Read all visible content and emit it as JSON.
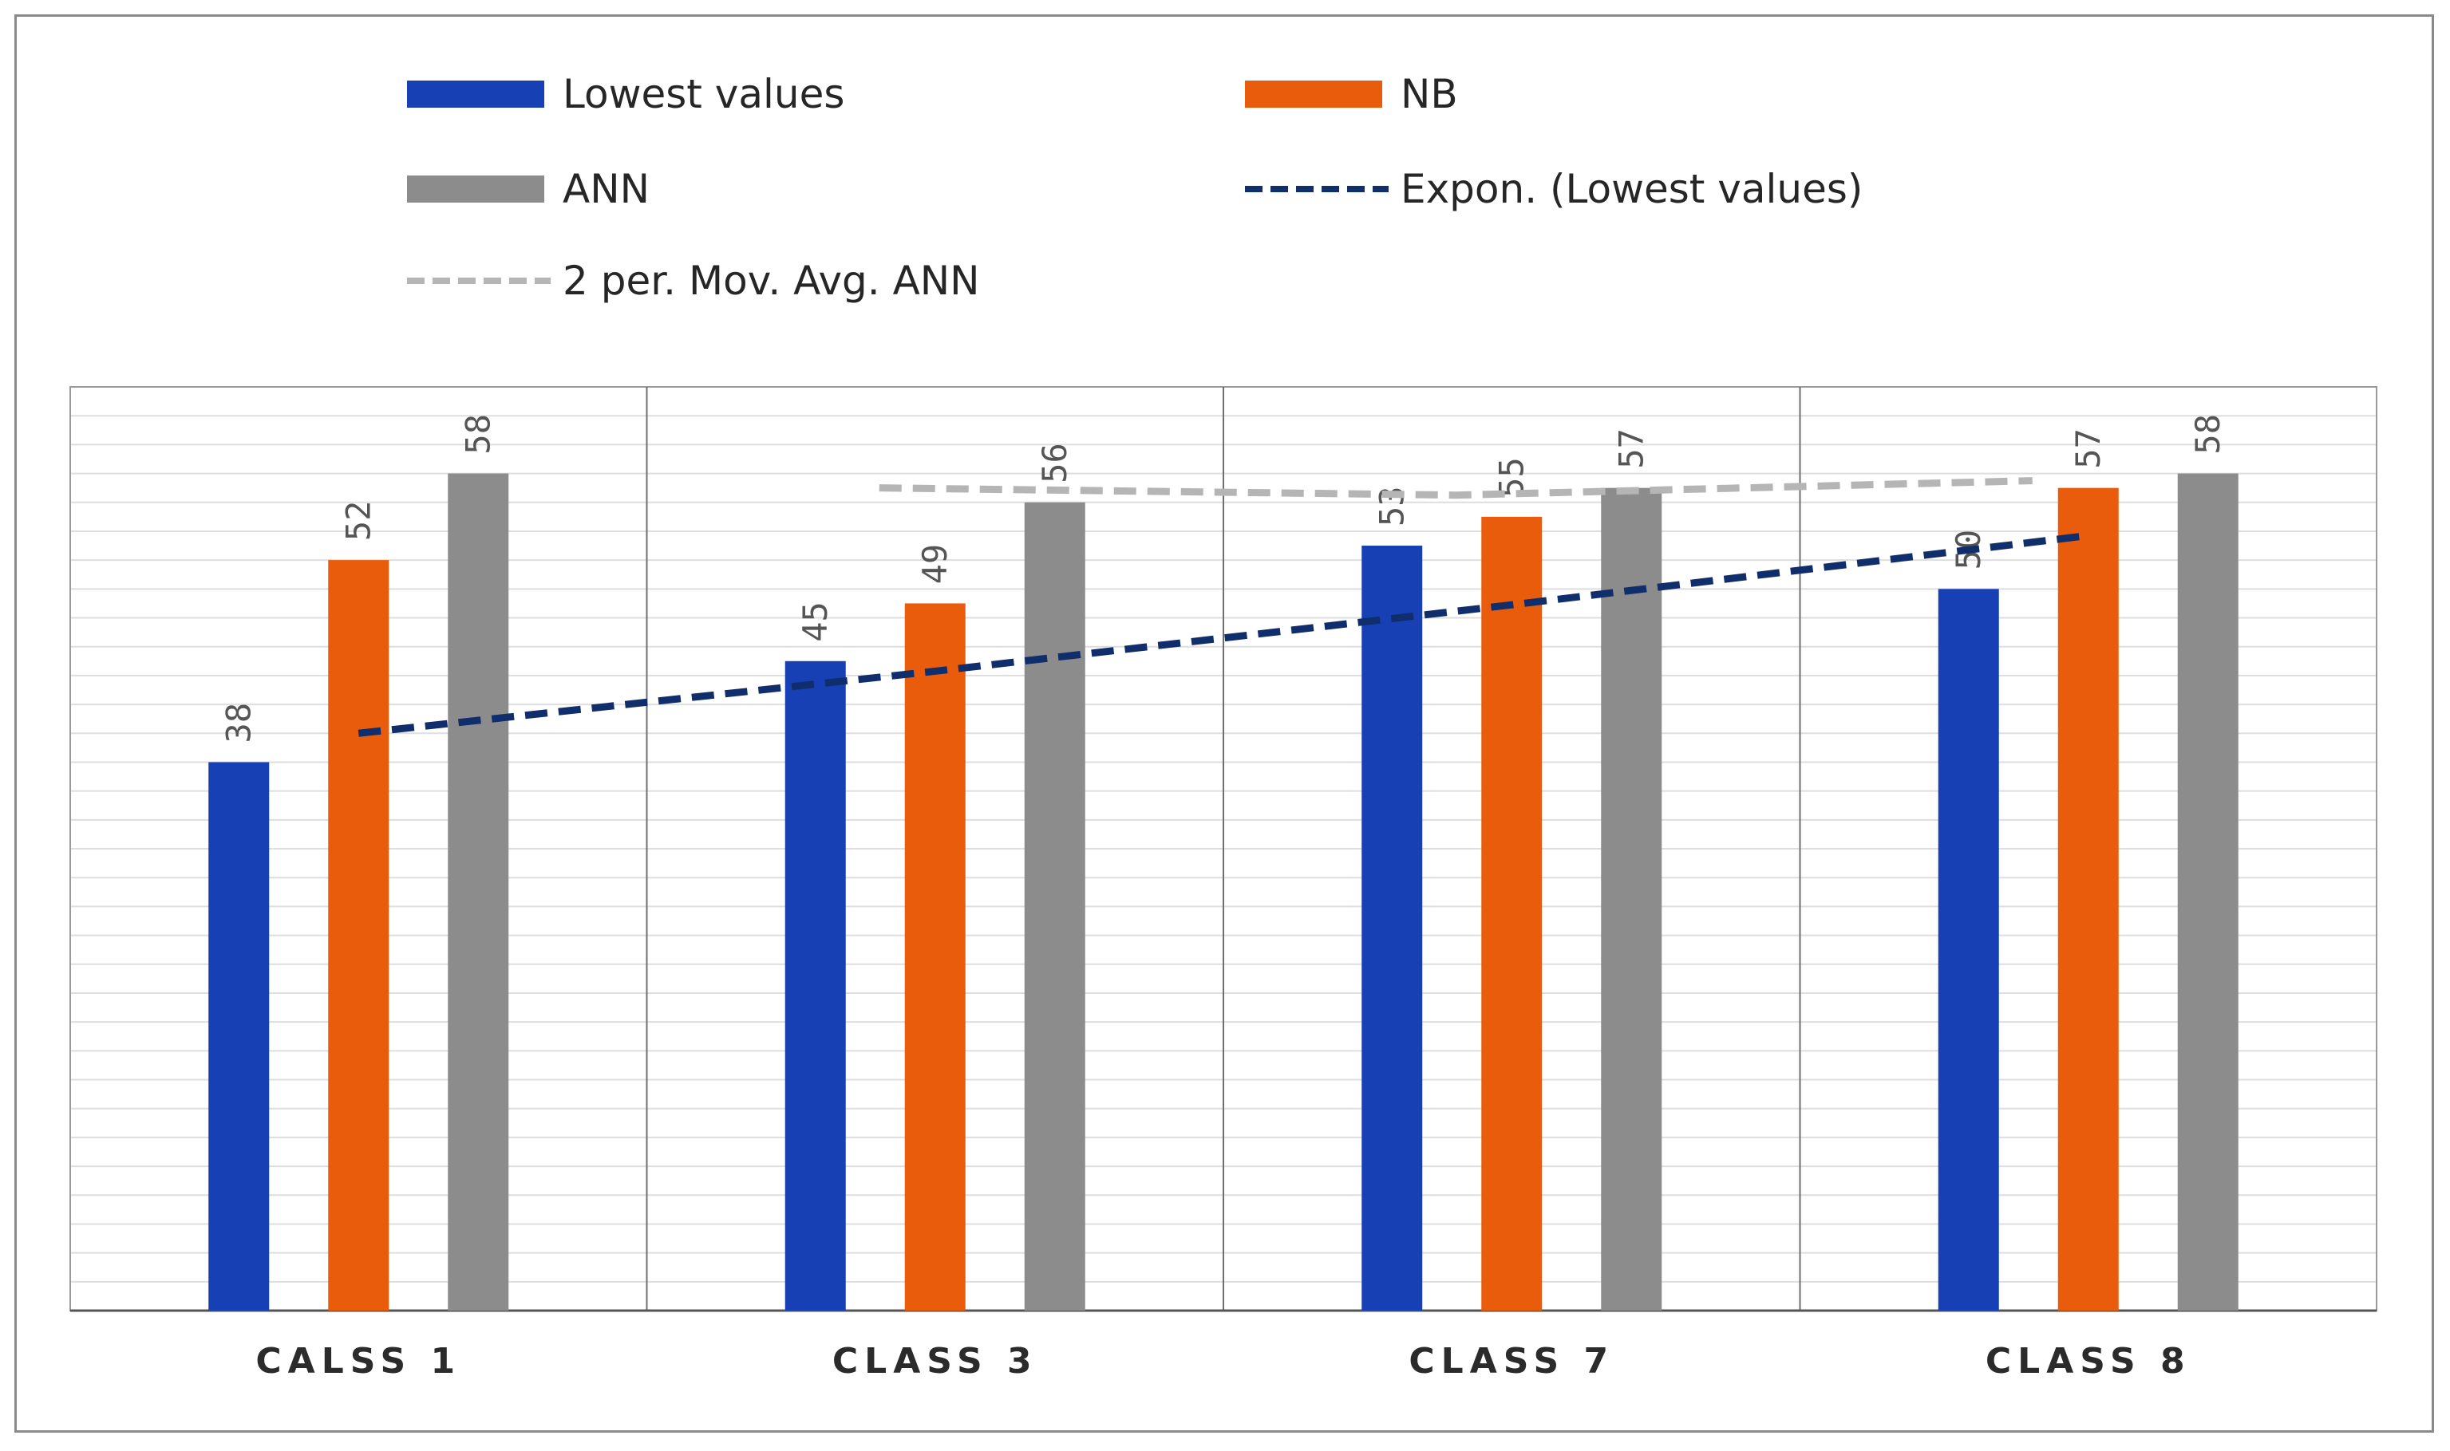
{
  "chart_data": {
    "type": "bar",
    "title": "",
    "xlabel": "",
    "ylabel": "",
    "ylim": [
      0,
      64
    ],
    "categories": [
      "CALSS 1",
      "CLASS 3",
      "CLASS 7",
      "CLASS 8"
    ],
    "series": [
      {
        "name": "Lowest values",
        "color": "#1740b5",
        "values": [
          38,
          45,
          53,
          50
        ]
      },
      {
        "name": "NB",
        "color": "#e85c0c",
        "values": [
          52,
          49,
          55,
          57
        ]
      },
      {
        "name": "ANN",
        "color": "#8c8c8c",
        "values": [
          58,
          56,
          57,
          58
        ]
      }
    ],
    "trendlines": [
      {
        "name": "Expon. (Lowest values)",
        "color": "#0f2e6b",
        "style": "dashed",
        "values": [
          40.0,
          44.3,
          48.9,
          53.7
        ]
      },
      {
        "name": "2 per. Mov. Avg. ANN",
        "color": "#b5b5b5",
        "style": "dashed",
        "values": [
          57.0,
          56.5,
          57.5
        ]
      }
    ],
    "legend": [
      {
        "label": "Lowest values",
        "kind": "bar",
        "color": "#1740b5"
      },
      {
        "label": "NB",
        "kind": "bar",
        "color": "#e85c0c"
      },
      {
        "label": "ANN",
        "kind": "bar",
        "color": "#8c8c8c"
      },
      {
        "label": "Expon. (Lowest values)",
        "kind": "line",
        "color": "#0f2e6b"
      },
      {
        "label": "2 per. Mov. Avg. ANN",
        "kind": "line",
        "color": "#b5b5b5"
      }
    ],
    "legend_position": "top",
    "grid": true
  }
}
